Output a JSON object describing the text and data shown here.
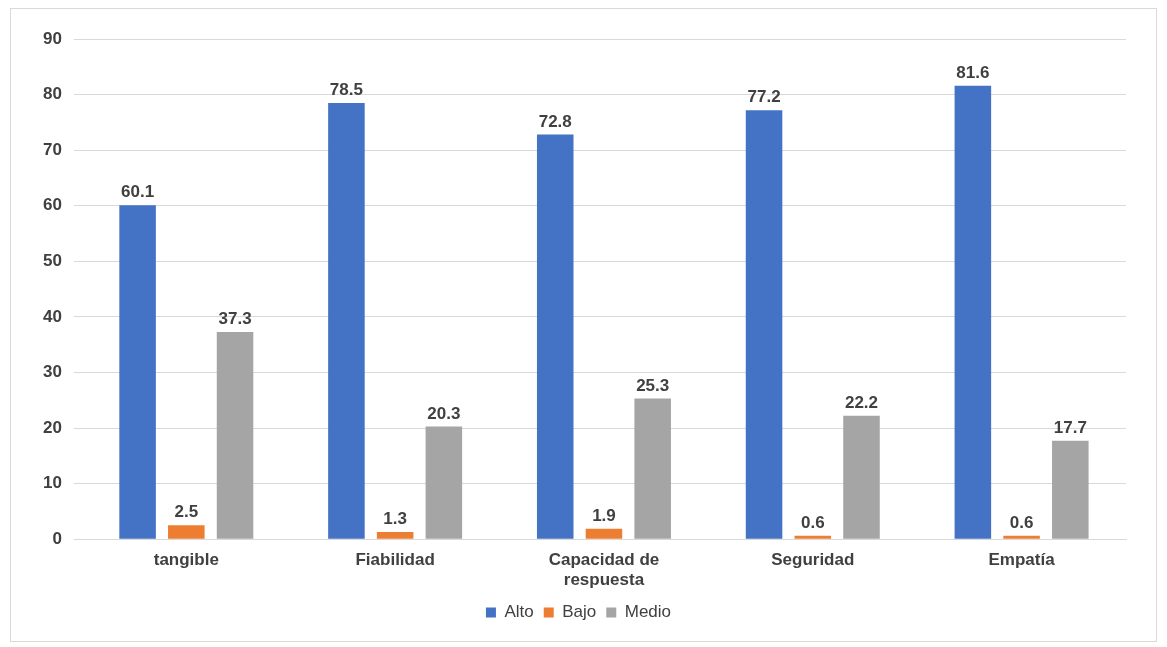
{
  "chart_data": {
    "type": "bar",
    "categories": [
      "tangible",
      "Fiabilidad",
      "Capacidad de respuesta",
      "Seguridad",
      "Empatía"
    ],
    "series": [
      {
        "name": "Alto",
        "color": "#4472c4",
        "values": [
          60.1,
          78.5,
          72.8,
          77.2,
          81.6
        ]
      },
      {
        "name": "Bajo",
        "color": "#ed7d31",
        "values": [
          2.5,
          1.3,
          1.9,
          0.6,
          0.6
        ]
      },
      {
        "name": "Medio",
        "color": "#a5a5a5",
        "values": [
          37.3,
          20.3,
          25.3,
          22.2,
          17.7
        ]
      }
    ],
    "ylim": [
      0,
      90
    ],
    "yticks": [
      0,
      10,
      20,
      30,
      40,
      50,
      60,
      70,
      80,
      90
    ],
    "grid": "y",
    "legend": "bottom",
    "data_labels": true
  }
}
